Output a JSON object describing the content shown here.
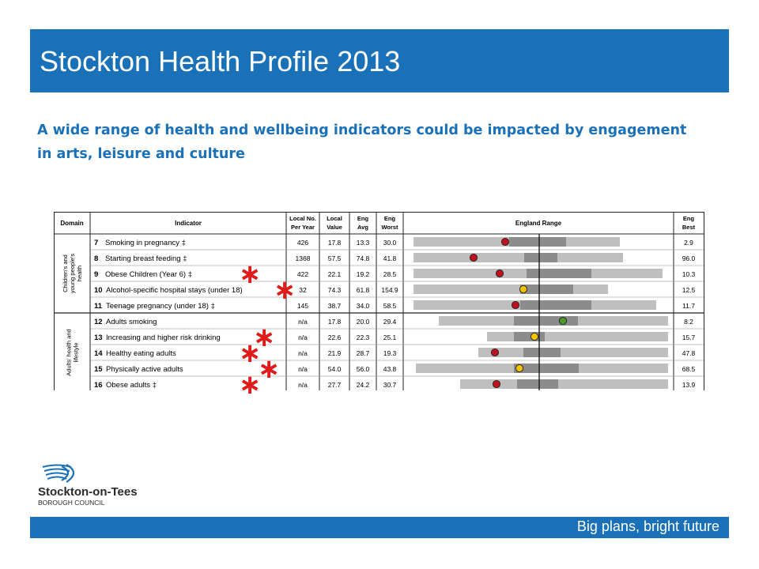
{
  "header": {
    "title": "Stockton Health Profile 2013"
  },
  "subtitle": "A wide range of health and wellbeing indicators could be impacted by engagement in arts, leisure and culture",
  "table": {
    "headers": {
      "domain": "Domain",
      "indicator": "Indicator",
      "local_no": [
        "Local No.",
        "Per Year"
      ],
      "local_value": [
        "Local",
        "Value"
      ],
      "eng_avg": [
        "Eng",
        "Avg"
      ],
      "eng_worst": [
        "Eng",
        "Worst"
      ],
      "england_range": "England Range",
      "eng_best": [
        "Eng",
        "Best"
      ]
    },
    "domains": [
      {
        "label": [
          "Children's and",
          "young people's",
          "health"
        ]
      },
      {
        "label": [
          "Adults' health and",
          "lifestyle"
        ]
      }
    ],
    "rows": [
      {
        "num": "7",
        "name": "Smoking in pregnancy ‡",
        "local_no": "426",
        "local_value": "17.8",
        "eng_avg": "13.3",
        "eng_worst": "30.0",
        "eng_best": "2.9",
        "dot": "red",
        "asterisk": false
      },
      {
        "num": "8",
        "name": "Starting breast feeding ‡",
        "local_no": "1368",
        "local_value": "57.5",
        "eng_avg": "74.8",
        "eng_worst": "41.8",
        "eng_best": "96.0",
        "dot": "red",
        "asterisk": false
      },
      {
        "num": "9",
        "name": "Obese Children (Year 6) ‡",
        "local_no": "422",
        "local_value": "22.1",
        "eng_avg": "19.2",
        "eng_worst": "28.5",
        "eng_best": "10.3",
        "dot": "red",
        "asterisk": true
      },
      {
        "num": "10",
        "name": "Alcohol-specific hospital stays (under 18)",
        "local_no": "32",
        "local_value": "74.3",
        "eng_avg": "61.8",
        "eng_worst": "154.9",
        "eng_best": "12.5",
        "dot": "yellow",
        "asterisk": true
      },
      {
        "num": "11",
        "name": "Teenage pregnancy (under 18) ‡",
        "local_no": "145",
        "local_value": "38.7",
        "eng_avg": "34.0",
        "eng_worst": "58.5",
        "eng_best": "11.7",
        "dot": "red",
        "asterisk": false
      },
      {
        "num": "12",
        "name": "Adults smoking",
        "local_no": "n/a",
        "local_value": "17.8",
        "eng_avg": "20.0",
        "eng_worst": "29.4",
        "eng_best": "8.2",
        "dot": "green",
        "asterisk": false
      },
      {
        "num": "13",
        "name": "Increasing and higher risk drinking",
        "local_no": "n/a",
        "local_value": "22.6",
        "eng_avg": "22.3",
        "eng_worst": "25.1",
        "eng_best": "15.7",
        "dot": "yellow",
        "asterisk": true
      },
      {
        "num": "14",
        "name": "Healthy eating adults",
        "local_no": "n/a",
        "local_value": "21.9",
        "eng_avg": "28.7",
        "eng_worst": "19.3",
        "eng_best": "47.8",
        "dot": "red",
        "asterisk": true
      },
      {
        "num": "15",
        "name": "Physically active adults",
        "local_no": "n/a",
        "local_value": "54.0",
        "eng_avg": "56.0",
        "eng_worst": "43.8",
        "eng_best": "68.5",
        "dot": "yellow",
        "asterisk": true
      },
      {
        "num": "16",
        "name": "Obese adults ‡",
        "local_no": "n/a",
        "local_value": "27.7",
        "eng_avg": "24.2",
        "eng_worst": "30.7",
        "eng_best": "13.9",
        "dot": "red",
        "asterisk": true
      }
    ]
  },
  "logo": {
    "name": "Stockton-on-Tees",
    "sub": "BOROUGH COUNCIL"
  },
  "footer": {
    "tagline": "Big plans, bright future"
  },
  "colors": {
    "brand_blue": "#1a71b8",
    "asterisk_red": "#e01b1b",
    "dot_red": "#c0111f",
    "dot_yellow": "#f5c400",
    "dot_green": "#4a9a2a",
    "bar_light": "#bfbfbf",
    "bar_dark": "#8c8c8c"
  }
}
